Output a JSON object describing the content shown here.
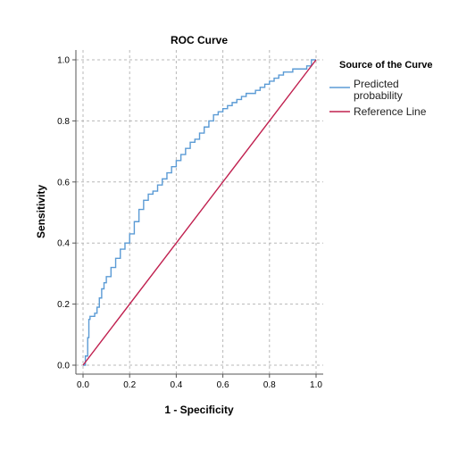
{
  "chart_data": {
    "type": "line",
    "title": "ROC Curve",
    "xlabel": "1 - Specificity",
    "ylabel": "Sensitivity",
    "xlim": [
      0.0,
      1.0
    ],
    "ylim": [
      0.0,
      1.0
    ],
    "xticks": [
      "0.0",
      "0.2",
      "0.4",
      "0.6",
      "0.8",
      "1.0"
    ],
    "yticks": [
      "0.0",
      "0.2",
      "0.4",
      "0.6",
      "0.8",
      "1.0"
    ],
    "grid": true,
    "legend": {
      "title": "Source of the Curve",
      "position": "right",
      "entries": [
        "Predicted probability",
        "Reference Line"
      ]
    },
    "series": [
      {
        "name": "Predicted probability",
        "color": "#5b9bd5",
        "x": [
          0.0,
          0.01,
          0.02,
          0.025,
          0.03,
          0.04,
          0.05,
          0.06,
          0.07,
          0.08,
          0.09,
          0.1,
          0.12,
          0.14,
          0.16,
          0.18,
          0.2,
          0.22,
          0.24,
          0.26,
          0.28,
          0.3,
          0.32,
          0.34,
          0.36,
          0.38,
          0.4,
          0.42,
          0.44,
          0.46,
          0.48,
          0.5,
          0.52,
          0.54,
          0.56,
          0.58,
          0.6,
          0.62,
          0.64,
          0.66,
          0.68,
          0.7,
          0.72,
          0.74,
          0.76,
          0.78,
          0.8,
          0.82,
          0.84,
          0.86,
          0.88,
          0.9,
          0.92,
          0.94,
          0.96,
          0.98,
          1.0
        ],
        "y": [
          0.0,
          0.03,
          0.09,
          0.15,
          0.16,
          0.16,
          0.17,
          0.19,
          0.22,
          0.25,
          0.27,
          0.29,
          0.32,
          0.35,
          0.38,
          0.4,
          0.43,
          0.47,
          0.51,
          0.54,
          0.56,
          0.57,
          0.59,
          0.61,
          0.63,
          0.65,
          0.67,
          0.69,
          0.71,
          0.73,
          0.74,
          0.76,
          0.78,
          0.8,
          0.82,
          0.83,
          0.84,
          0.85,
          0.86,
          0.87,
          0.88,
          0.89,
          0.89,
          0.9,
          0.91,
          0.92,
          0.93,
          0.94,
          0.95,
          0.96,
          0.96,
          0.97,
          0.97,
          0.97,
          0.98,
          1.0,
          1.0
        ]
      },
      {
        "name": "Reference Line",
        "color": "#c0204f",
        "x": [
          0.0,
          1.0
        ],
        "y": [
          0.0,
          1.0
        ]
      }
    ]
  }
}
